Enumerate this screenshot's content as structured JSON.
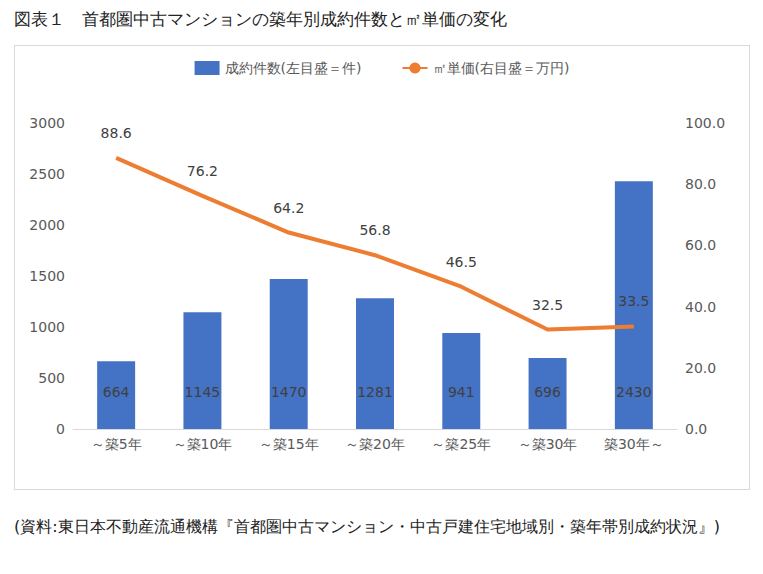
{
  "chart_data": {
    "type": "bar",
    "title": "図表１　首都圏中古マンションの築年別成約件数と㎡単価の変化",
    "annotations": [
      "(資料:東日本不動産流通機構『首都圏中古マンション・中古戸建住宅地域別・築年帯別成約状況』)"
    ],
    "categories": [
      "～築5年",
      "～築10年",
      "～築15年",
      "～築20年",
      "～築25年",
      "～築30年",
      "築30年～"
    ],
    "series": [
      {
        "name": "成約件数(左目盛＝件)",
        "type": "bar",
        "color": "#4472c4",
        "axis": "y",
        "values": [
          664,
          1145,
          1470,
          1281,
          941,
          696,
          2430
        ]
      },
      {
        "name": "㎡単価(右目盛＝万円)",
        "type": "line",
        "color": "#ed7d31",
        "axis": "y2",
        "values": [
          88.6,
          76.2,
          64.2,
          56.8,
          46.5,
          32.5,
          33.5
        ]
      }
    ],
    "ylim": [
      0,
      3000
    ],
    "yticks": [
      0,
      500,
      1000,
      1500,
      2000,
      2500,
      3000
    ],
    "y2lim": [
      0,
      100
    ],
    "y2ticks": [
      {
        "value": 0,
        "label": "0.0"
      },
      {
        "value": 20,
        "label": "20.0"
      },
      {
        "value": 40,
        "label": "40.0"
      },
      {
        "value": 60,
        "label": "60.0"
      },
      {
        "value": 80,
        "label": "80.0"
      },
      {
        "value": 100,
        "label": "100.0"
      }
    ],
    "grid": false,
    "legend": "top",
    "data_labels": true
  }
}
